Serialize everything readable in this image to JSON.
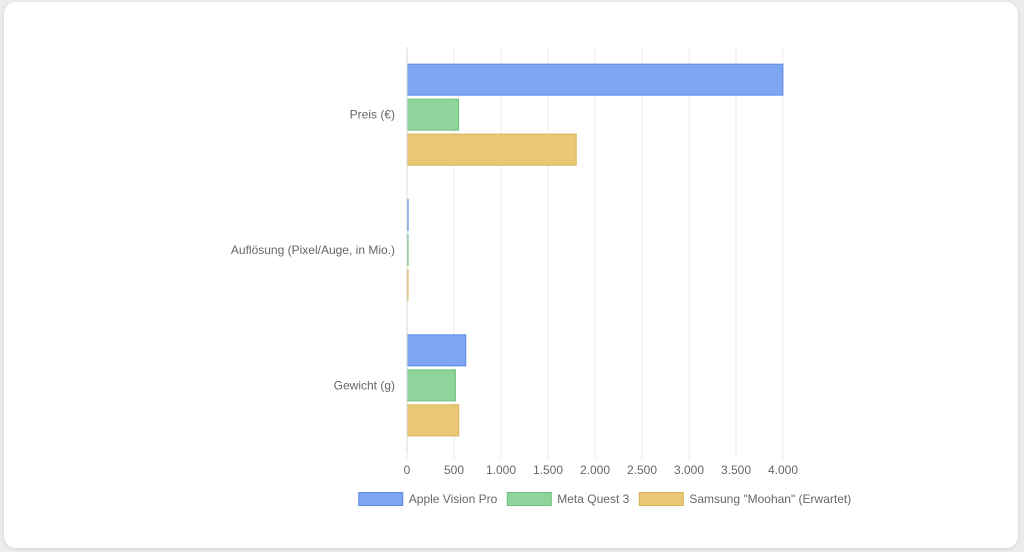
{
  "chart_data": {
    "type": "bar",
    "orientation": "horizontal",
    "categories": [
      "Preis (€)",
      "Auflösung (Pixel/Auge, in Mio.)",
      "Gewicht (g)"
    ],
    "series": [
      {
        "name": "Apple Vision Pro",
        "values": [
          3999,
          11.5,
          625
        ],
        "color": "#7fa6f2",
        "border": "#5b8ae6"
      },
      {
        "name": "Meta Quest 3",
        "values": [
          549,
          4.5,
          515
        ],
        "color": "#8fd49a",
        "border": "#6cc07a"
      },
      {
        "name": "Samsung \"Moohan\" (Erwartet)",
        "values": [
          1800,
          7,
          550
        ],
        "color": "#e9c875",
        "border": "#d9b255"
      }
    ],
    "xlim": [
      0,
      4000
    ],
    "xticks": [
      "0",
      "500",
      "1.000",
      "1.500",
      "2.000",
      "2.500",
      "3.000",
      "3.500",
      "4.000"
    ],
    "grid": true,
    "legend_position": "bottom"
  }
}
